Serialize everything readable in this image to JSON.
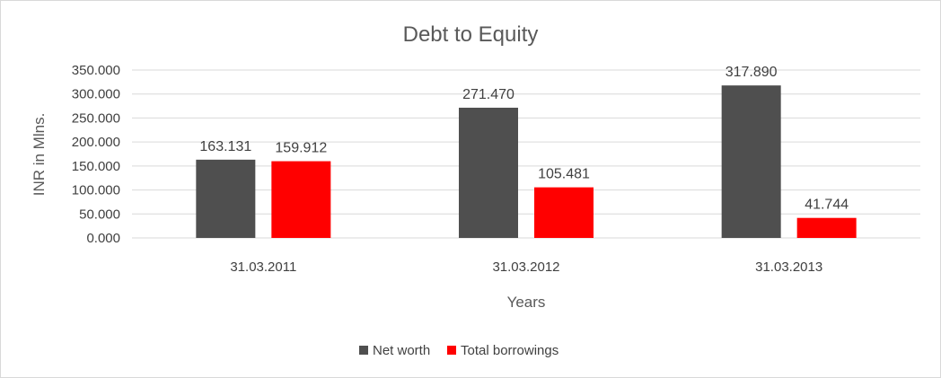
{
  "chart_data": {
    "type": "bar",
    "title": "Debt to Equity",
    "xlabel": "Years",
    "ylabel": "INR in Mlns.",
    "categories": [
      "31.03.2011",
      "31.03.2012",
      "31.03.2013"
    ],
    "series": [
      {
        "name": "Net worth",
        "values": [
          163.131,
          271.47,
          317.89
        ],
        "labels": [
          "163.131",
          "271.470",
          "317.890"
        ],
        "color": "#4f4f4f"
      },
      {
        "name": "Total borrowings",
        "values": [
          159.912,
          105.481,
          41.744
        ],
        "labels": [
          "159.912",
          "105.481",
          "41.744"
        ],
        "color": "#ff0000"
      }
    ],
    "ylim": [
      0,
      350
    ],
    "yticks": [
      0,
      50,
      100,
      150,
      200,
      250,
      300,
      350
    ],
    "ytick_labels": [
      "0.000",
      "50.000",
      "100.000",
      "150.000",
      "200.000",
      "250.000",
      "300.000",
      "350.000"
    ],
    "grid": true,
    "legend_position": "bottom"
  }
}
